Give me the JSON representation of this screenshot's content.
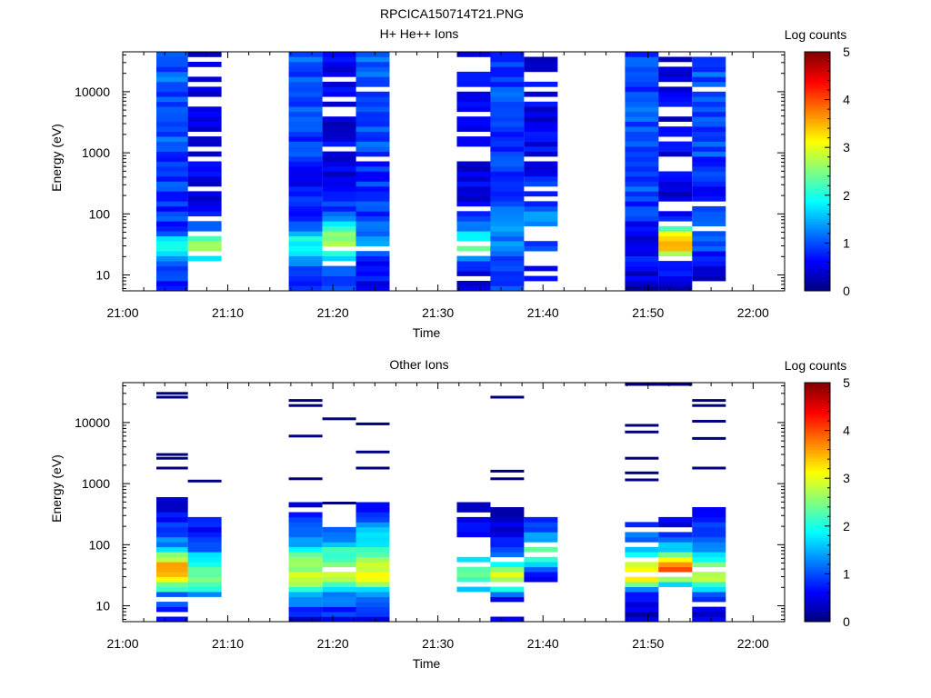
{
  "figure_title": "RPCICA150714T21.PNG",
  "colormap": [
    "#00007f",
    "#0000ff",
    "#0080ff",
    "#00ffff",
    "#80ff80",
    "#ffff00",
    "#ff8000",
    "#ff0000",
    "#7f0000"
  ],
  "chart_data": [
    {
      "type": "heatmap",
      "title": "H+ He++ Ions",
      "xlabel": "Time",
      "ylabel": "Energy (eV)",
      "x_ticks": [
        "21:00",
        "21:10",
        "21:20",
        "21:30",
        "21:40",
        "21:50",
        "22:00"
      ],
      "x_range_min": [
        0,
        63
      ],
      "y_scale": "log",
      "y_ticks": [
        "10",
        "100",
        "1000",
        "10000"
      ],
      "y_range_ev": [
        5.5,
        45000
      ],
      "colorbar": {
        "label": "Log counts",
        "range": [
          0,
          5
        ],
        "ticks": [
          "0",
          "1",
          "2",
          "3",
          "4",
          "5"
        ]
      },
      "columns": [
        {
          "t_start": 3.2,
          "t_end": 6.2,
          "seed": 11,
          "e_min": 5.5,
          "e_max": 45000,
          "profile": [
            [
              5.5,
              0.9
            ],
            [
              10,
              0.8
            ],
            [
              17,
              1.3
            ],
            [
              22,
              1.6
            ],
            [
              30,
              2.2
            ],
            [
              40,
              1.6
            ],
            [
              60,
              0.9
            ],
            [
              200,
              0.85
            ],
            [
              2000,
              1.0
            ],
            [
              45000,
              1.1
            ]
          ],
          "gap": 0.0
        },
        {
          "t_start": 6.2,
          "t_end": 9.4,
          "seed": 12,
          "e_min": 15,
          "e_max": 45000,
          "profile": [
            [
              15,
              1.5
            ],
            [
              22,
              2.4
            ],
            [
              30,
              2.7
            ],
            [
              45,
              2.2
            ],
            [
              60,
              1.0
            ],
            [
              200,
              0.5
            ],
            [
              2000,
              0.45
            ],
            [
              45000,
              0.5
            ]
          ],
          "gap": 0.3
        },
        {
          "t_start": 15.8,
          "t_end": 19.0,
          "seed": 13,
          "e_min": 5.5,
          "e_max": 45000,
          "profile": [
            [
              5.5,
              0.9
            ],
            [
              12,
              0.9
            ],
            [
              20,
              1.6
            ],
            [
              30,
              2.0
            ],
            [
              45,
              1.8
            ],
            [
              70,
              1.0
            ],
            [
              200,
              0.7
            ],
            [
              2000,
              0.9
            ],
            [
              45000,
              1.0
            ]
          ],
          "gap": 0.0
        },
        {
          "t_start": 19.0,
          "t_end": 22.2,
          "seed": 14,
          "e_min": 5.5,
          "e_max": 45000,
          "profile": [
            [
              5.5,
              1.0
            ],
            [
              15,
              1.2
            ],
            [
              22,
              2.2
            ],
            [
              35,
              2.8
            ],
            [
              50,
              2.6
            ],
            [
              70,
              1.8
            ],
            [
              100,
              1.0
            ],
            [
              300,
              0.5
            ],
            [
              45000,
              0.55
            ]
          ],
          "gap": 0.18
        },
        {
          "t_start": 22.2,
          "t_end": 25.4,
          "seed": 15,
          "e_min": 5.5,
          "e_max": 45000,
          "profile": [
            [
              5.5,
              0.5
            ],
            [
              15,
              0.8
            ],
            [
              30,
              1.3
            ],
            [
              80,
              0.9
            ],
            [
              300,
              0.8
            ],
            [
              2000,
              1.0
            ],
            [
              45000,
              1.05
            ]
          ],
          "gap": 0.06
        },
        {
          "t_start": 31.8,
          "t_end": 35.0,
          "seed": 16,
          "e_min": 5.5,
          "e_max": 45000,
          "profile": [
            [
              5.5,
              0.4
            ],
            [
              12,
              0.6
            ],
            [
              20,
              1.6
            ],
            [
              30,
              2.3
            ],
            [
              45,
              1.9
            ],
            [
              70,
              1.0
            ],
            [
              200,
              0.5
            ],
            [
              2000,
              0.45
            ],
            [
              45000,
              0.5
            ]
          ],
          "gap": 0.22
        },
        {
          "t_start": 35.0,
          "t_end": 38.2,
          "seed": 17,
          "e_min": 5.5,
          "e_max": 45000,
          "profile": [
            [
              5.5,
              0.9
            ],
            [
              15,
              1.0
            ],
            [
              30,
              1.3
            ],
            [
              60,
              1.3
            ],
            [
              200,
              1.0
            ],
            [
              2000,
              0.9
            ],
            [
              45000,
              0.95
            ]
          ],
          "gap": 0.0
        },
        {
          "t_start": 38.2,
          "t_end": 41.4,
          "seed": 18,
          "e_min": 7.5,
          "e_max": 38000,
          "profile": [
            [
              7.5,
              0.4
            ],
            [
              20,
              0.8
            ],
            [
              40,
              1.2
            ],
            [
              80,
              1.3
            ],
            [
              200,
              0.8
            ],
            [
              2000,
              0.55
            ],
            [
              38000,
              0.5
            ]
          ],
          "gap": 0.22
        },
        {
          "t_start": 47.8,
          "t_end": 51.0,
          "seed": 19,
          "e_min": 5.5,
          "e_max": 45000,
          "profile": [
            [
              5.5,
              0.35
            ],
            [
              15,
              0.6
            ],
            [
              40,
              0.5
            ],
            [
              100,
              0.8
            ],
            [
              300,
              0.95
            ],
            [
              2000,
              1.0
            ],
            [
              45000,
              1.0
            ]
          ],
          "gap": 0.0
        },
        {
          "t_start": 51.0,
          "t_end": 54.2,
          "seed": 20,
          "e_min": 5.5,
          "e_max": 45000,
          "profile": [
            [
              5.5,
              0.4
            ],
            [
              15,
              0.6
            ],
            [
              25,
              3.2
            ],
            [
              35,
              3.7
            ],
            [
              55,
              2.6
            ],
            [
              75,
              0.6
            ],
            [
              300,
              0.45
            ],
            [
              2000,
              0.5
            ],
            [
              45000,
              0.5
            ]
          ],
          "gap": 0.22
        },
        {
          "t_start": 54.2,
          "t_end": 57.4,
          "seed": 21,
          "e_min": 8,
          "e_max": 45000,
          "profile": [
            [
              8,
              0.4
            ],
            [
              15,
              0.5
            ],
            [
              30,
              1.0
            ],
            [
              60,
              1.2
            ],
            [
              200,
              0.8
            ],
            [
              2000,
              1.0
            ],
            [
              45000,
              1.05
            ]
          ],
          "gap": 0.1
        }
      ]
    },
    {
      "type": "heatmap",
      "title": "Other Ions",
      "xlabel": "Time",
      "ylabel": "Energy (eV)",
      "x_ticks": [
        "21:00",
        "21:10",
        "21:20",
        "21:30",
        "21:40",
        "21:50",
        "22:00"
      ],
      "x_range_min": [
        0,
        63
      ],
      "y_scale": "log",
      "y_ticks": [
        "10",
        "100",
        "1000",
        "10000"
      ],
      "y_range_ev": [
        5.5,
        45000
      ],
      "colorbar": {
        "label": "Log counts",
        "range": [
          0,
          5
        ],
        "ticks": [
          "0",
          "1",
          "2",
          "3",
          "4",
          "5"
        ]
      },
      "columns": [
        {
          "t_start": 3.2,
          "t_end": 6.2,
          "seed": 31,
          "e_min": 5.5,
          "e_max": 600,
          "profile": [
            [
              5.5,
              0.9
            ],
            [
              15,
              1.0
            ],
            [
              20,
              2.2
            ],
            [
              30,
              3.1
            ],
            [
              40,
              3.8
            ],
            [
              60,
              2.7
            ],
            [
              100,
              1.3
            ],
            [
              300,
              0.7
            ],
            [
              600,
              0.4
            ]
          ],
          "gap": 0.05,
          "lines": [
            1800,
            2600,
            3000,
            26000,
            30000
          ]
        },
        {
          "t_start": 6.2,
          "t_end": 9.4,
          "seed": 32,
          "e_min": 15,
          "e_max": 280,
          "profile": [
            [
              15,
              1.4
            ],
            [
              22,
              2.2
            ],
            [
              35,
              2.4
            ],
            [
              60,
              1.8
            ],
            [
              100,
              1.0
            ],
            [
              280,
              0.5
            ]
          ],
          "gap": 0.03,
          "lines": [
            1100
          ]
        },
        {
          "t_start": 15.8,
          "t_end": 19.0,
          "seed": 33,
          "e_min": 5.5,
          "e_max": 540,
          "profile": [
            [
              5.5,
              0.3
            ],
            [
              15,
              1.5
            ],
            [
              20,
              2.4
            ],
            [
              35,
              2.8
            ],
            [
              55,
              2.5
            ],
            [
              100,
              1.6
            ],
            [
              300,
              0.9
            ],
            [
              540,
              0.5
            ]
          ],
          "gap": 0.05,
          "lines": [
            1200,
            6000,
            19000,
            23000
          ]
        },
        {
          "t_start": 19.0,
          "t_end": 22.2,
          "seed": 34,
          "e_min": 5.5,
          "e_max": 200,
          "profile": [
            [
              5.5,
              0.5
            ],
            [
              15,
              1.4
            ],
            [
              25,
              2.5
            ],
            [
              40,
              2.9
            ],
            [
              60,
              2.4
            ],
            [
              100,
              1.7
            ],
            [
              200,
              0.8
            ]
          ],
          "gap": 0.03,
          "lines": [
            480,
            11500
          ]
        },
        {
          "t_start": 22.2,
          "t_end": 25.4,
          "seed": 35,
          "e_min": 5.5,
          "e_max": 540,
          "profile": [
            [
              5.5,
              0.4
            ],
            [
              15,
              1.2
            ],
            [
              25,
              2.8
            ],
            [
              35,
              3.1
            ],
            [
              55,
              2.6
            ],
            [
              100,
              1.8
            ],
            [
              300,
              1.0
            ],
            [
              540,
              0.6
            ]
          ],
          "gap": 0.03,
          "lines": [
            1800,
            3300,
            9500
          ]
        },
        {
          "t_start": 31.8,
          "t_end": 35.0,
          "seed": 36,
          "e_min": 15,
          "e_max": 540,
          "profile": [
            [
              15,
              1.0
            ],
            [
              20,
              1.8
            ],
            [
              35,
              2.4
            ],
            [
              60,
              1.5
            ],
            [
              100,
              0.9
            ],
            [
              300,
              0.6
            ],
            [
              540,
              0.3
            ]
          ],
          "gap": 0.3,
          "lines": []
        },
        {
          "t_start": 35.0,
          "t_end": 38.2,
          "seed": 37,
          "e_min": 5.5,
          "e_max": 380,
          "profile": [
            [
              5.5,
              0.5
            ],
            [
              12,
              0.4
            ],
            [
              20,
              2.2
            ],
            [
              30,
              3.1
            ],
            [
              45,
              2.0
            ],
            [
              80,
              1.1
            ],
            [
              200,
              0.5
            ],
            [
              380,
              0.3
            ]
          ],
          "gap": 0.22,
          "lines": [
            1200,
            1600,
            26000
          ]
        },
        {
          "t_start": 38.2,
          "t_end": 41.4,
          "seed": 38,
          "e_min": 27,
          "e_max": 260,
          "profile": [
            [
              27,
              0.4
            ],
            [
              35,
              1.1
            ],
            [
              50,
              1.8
            ],
            [
              80,
              2.3
            ],
            [
              150,
              1.2
            ],
            [
              260,
              0.5
            ]
          ],
          "gap": 0.2,
          "lines": []
        },
        {
          "t_start": 47.8,
          "t_end": 51.0,
          "seed": 39,
          "e_min": 5.5,
          "e_max": 260,
          "profile": [
            [
              5.5,
              0.3
            ],
            [
              15,
              0.6
            ],
            [
              22,
              2.3
            ],
            [
              30,
              3.3
            ],
            [
              45,
              3.0
            ],
            [
              80,
              1.6
            ],
            [
              150,
              1.0
            ],
            [
              260,
              0.6
            ]
          ],
          "gap": 0.05,
          "lines": [
            1150,
            1500,
            2600,
            7000,
            9000,
            42000
          ]
        },
        {
          "t_start": 51.0,
          "t_end": 54.2,
          "seed": 40,
          "e_min": 22,
          "e_max": 260,
          "profile": [
            [
              22,
              1.3
            ],
            [
              30,
              3.6
            ],
            [
              40,
              4.0
            ],
            [
              55,
              3.0
            ],
            [
              90,
              1.6
            ],
            [
              160,
              0.9
            ],
            [
              260,
              0.4
            ]
          ],
          "gap": 0.1,
          "lines": [
            42000
          ]
        },
        {
          "t_start": 54.2,
          "t_end": 57.4,
          "seed": 41,
          "e_min": 5.5,
          "e_max": 380,
          "profile": [
            [
              5.5,
              0.3
            ],
            [
              15,
              1.0
            ],
            [
              25,
              2.5
            ],
            [
              40,
              2.8
            ],
            [
              60,
              2.0
            ],
            [
              100,
              1.3
            ],
            [
              200,
              0.8
            ],
            [
              380,
              0.5
            ]
          ],
          "gap": 0.08,
          "lines": [
            1800,
            5500,
            10500,
            19000,
            23000
          ]
        }
      ]
    }
  ]
}
